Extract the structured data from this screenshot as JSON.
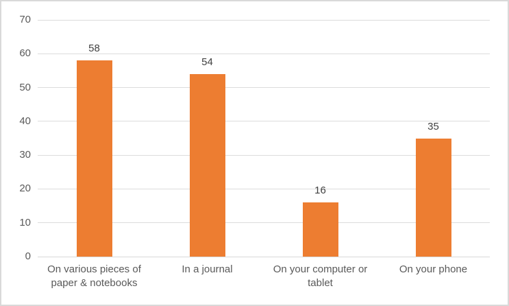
{
  "chart_data": {
    "type": "bar",
    "categories": [
      "On various pieces of paper & notebooks",
      "In a journal",
      "On your computer or tablet",
      "On your phone"
    ],
    "values": [
      58,
      54,
      16,
      35
    ],
    "data_labels": [
      "58",
      "54",
      "16",
      "35"
    ],
    "title": "",
    "xlabel": "",
    "ylabel": "",
    "ylim": [
      0,
      70
    ],
    "yticks": [
      0,
      10,
      20,
      30,
      40,
      50,
      60,
      70
    ],
    "ytick_labels": [
      "0",
      "10",
      "20",
      "30",
      "40",
      "50",
      "60",
      "70"
    ],
    "grid": "horizontal",
    "legend_position": "none",
    "bar_color": "#ED7D31",
    "gridline_color": "#DCDCDC",
    "axis_line_color": "#D9D9D9",
    "axis_text_color": "#595959",
    "data_label_color": "#404040",
    "frame_border_color": "#D9D9D9",
    "background_color": "#FFFFFF"
  }
}
